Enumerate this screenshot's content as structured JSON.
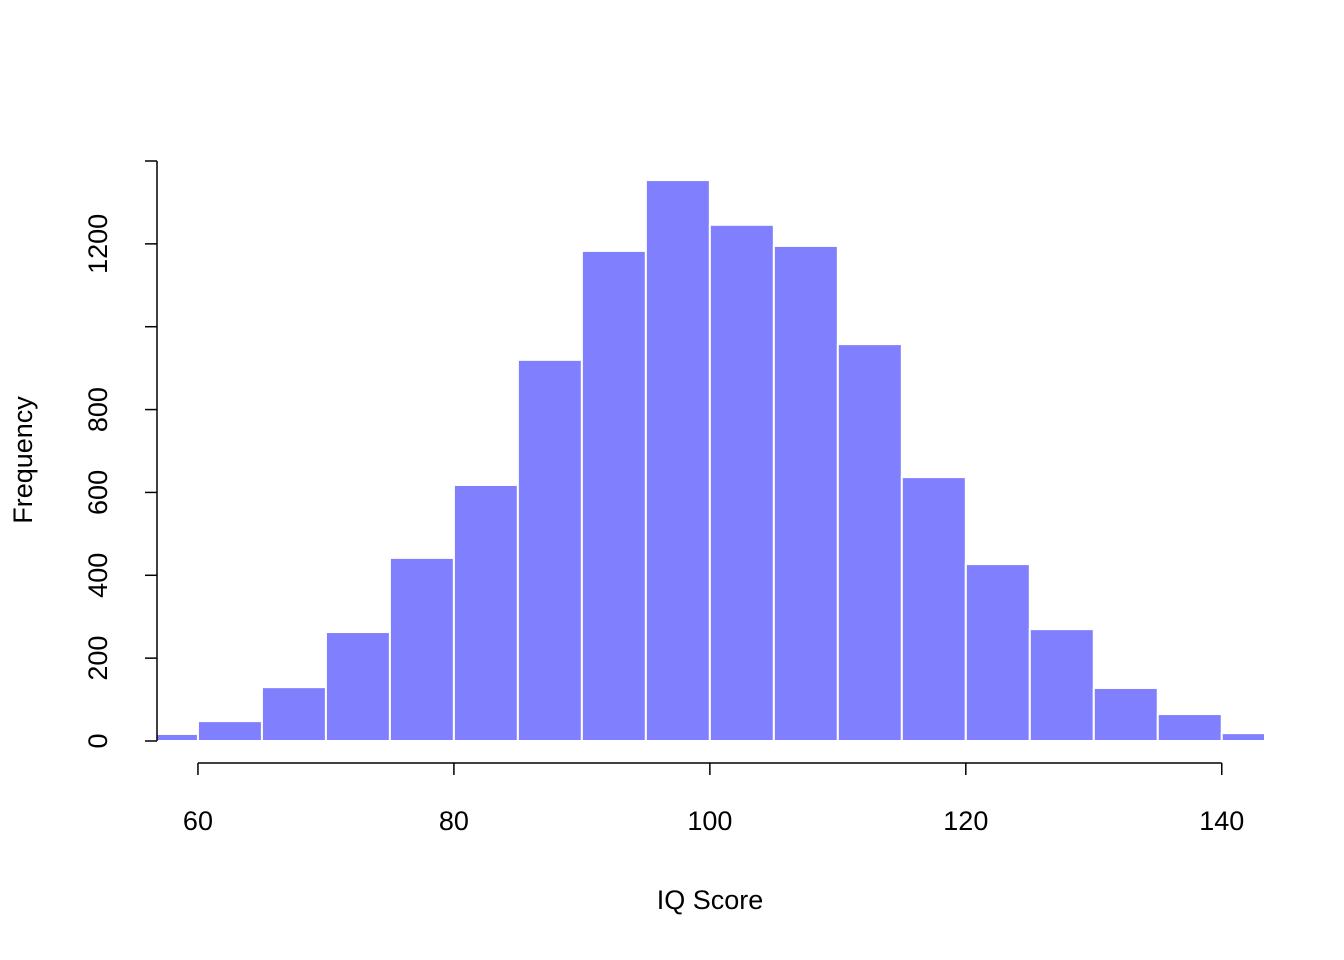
{
  "chart_data": {
    "type": "histogram",
    "x_label": "IQ Score",
    "y_label": "Frequency",
    "bins": [
      55,
      60,
      65,
      70,
      75,
      80,
      85,
      90,
      95,
      100,
      105,
      110,
      115,
      120,
      125,
      130,
      135,
      140,
      145
    ],
    "values": [
      17,
      48,
      130,
      263,
      442,
      618,
      920,
      1183,
      1354,
      1246,
      1195,
      958,
      637,
      427,
      270,
      128,
      65,
      19
    ],
    "color": "#8080ff",
    "edge_color": "#ffffff",
    "xlim": [
      56.8,
      143.3
    ],
    "ylim": [
      0,
      1400
    ],
    "xticks": [
      60,
      80,
      100,
      120,
      140
    ],
    "yticks": [
      0,
      200,
      400,
      600,
      800,
      {
        "value": 1000,
        "label": null
      },
      1200,
      {
        "value": 1400,
        "label": null
      }
    ]
  }
}
